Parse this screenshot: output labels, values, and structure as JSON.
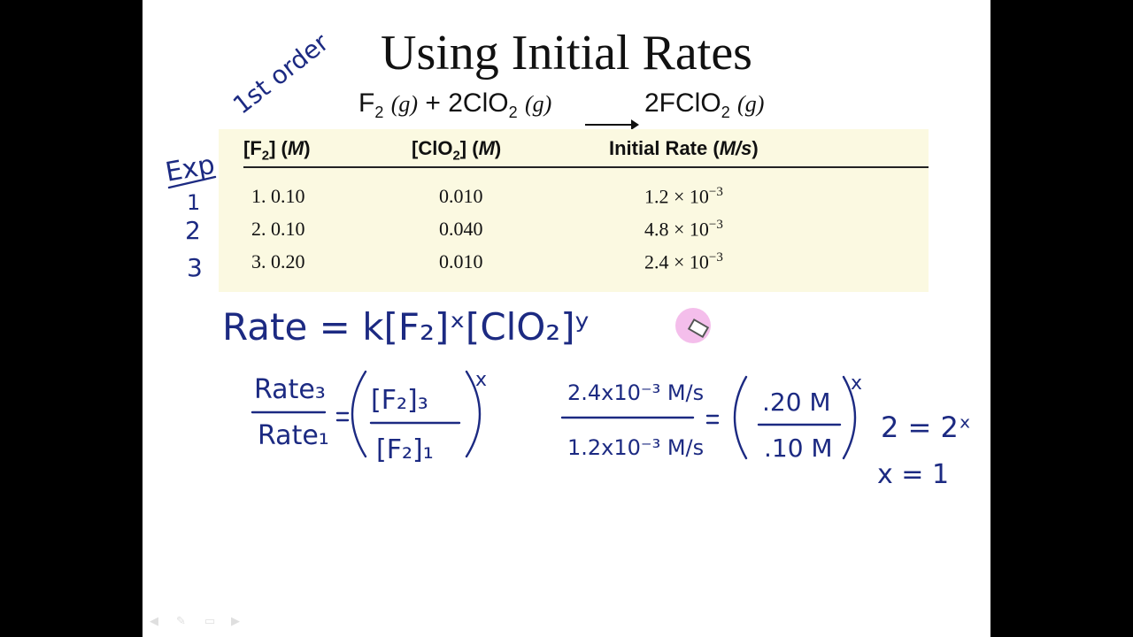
{
  "slide": {
    "title": "Using Initial Rates",
    "reaction": {
      "left_a": "F",
      "left_a_sub": "2",
      "left_a_phase": "(g)",
      "plus": "+ 2ClO",
      "left_b_sub": "2",
      "left_b_phase": "(g)",
      "product": "2FClO",
      "product_sub": "2",
      "product_phase": "(g)"
    },
    "table": {
      "headers": {
        "f2": "[F",
        "f2_sub": "2",
        "f2_unit": "M",
        "clo2": "[ClO",
        "clo2_sub": "2",
        "clo2_unit": "M",
        "rate": "Initial Rate (",
        "rate_unit": "M/s"
      },
      "rows": [
        {
          "f2": "1. 0.10",
          "clo2": "0.010",
          "rate": "1.2 × 10",
          "exp": "−3"
        },
        {
          "f2": "2. 0.10",
          "clo2": "0.040",
          "rate": "4.8 × 10",
          "exp": "−3"
        },
        {
          "f2": "3. 0.20",
          "clo2": "0.010",
          "rate": "2.4 × 10",
          "exp": "−3"
        }
      ]
    }
  },
  "annotations": {
    "order_note": "1st order",
    "exp_label": "Exp",
    "exp_numbers": [
      "1",
      "2",
      "3"
    ],
    "rate_law": "Rate = k[F₂]ˣ[ClO₂]ʸ",
    "ratio_left_num": "Rate₃",
    "ratio_left_den": "Rate₁",
    "ratio_mid_num": "[F₂]₃",
    "ratio_mid_den": "[F₂]₁",
    "exponent": "x",
    "ratio_val_num": "2.4x10⁻³ M/s",
    "ratio_val_den": "1.2x10⁻³ M/s",
    "conc_num": ".20 M",
    "conc_den": ".10 M",
    "result_1": "2 = 2ˣ",
    "result_2": "x = 1"
  },
  "colors": {
    "ink": "#1c2a82",
    "table_bg": "#fbf9e1",
    "background": "#000000",
    "slide": "#ffffff",
    "pointer": "#e66ed2"
  },
  "controls": [
    "prev-icon",
    "pen-icon",
    "menu-icon",
    "next-icon"
  ]
}
